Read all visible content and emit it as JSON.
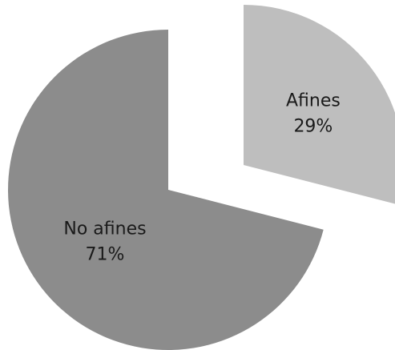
{
  "chart_data": {
    "type": "pie",
    "title": "",
    "legend": "none",
    "slices": [
      {
        "label": "Afines",
        "value": 29,
        "value_label": "29%",
        "color": "#bebebe",
        "exploded": true
      },
      {
        "label": "No afines",
        "value": 71,
        "value_label": "71%",
        "color": "#8c8c8c",
        "exploded": false
      }
    ]
  }
}
